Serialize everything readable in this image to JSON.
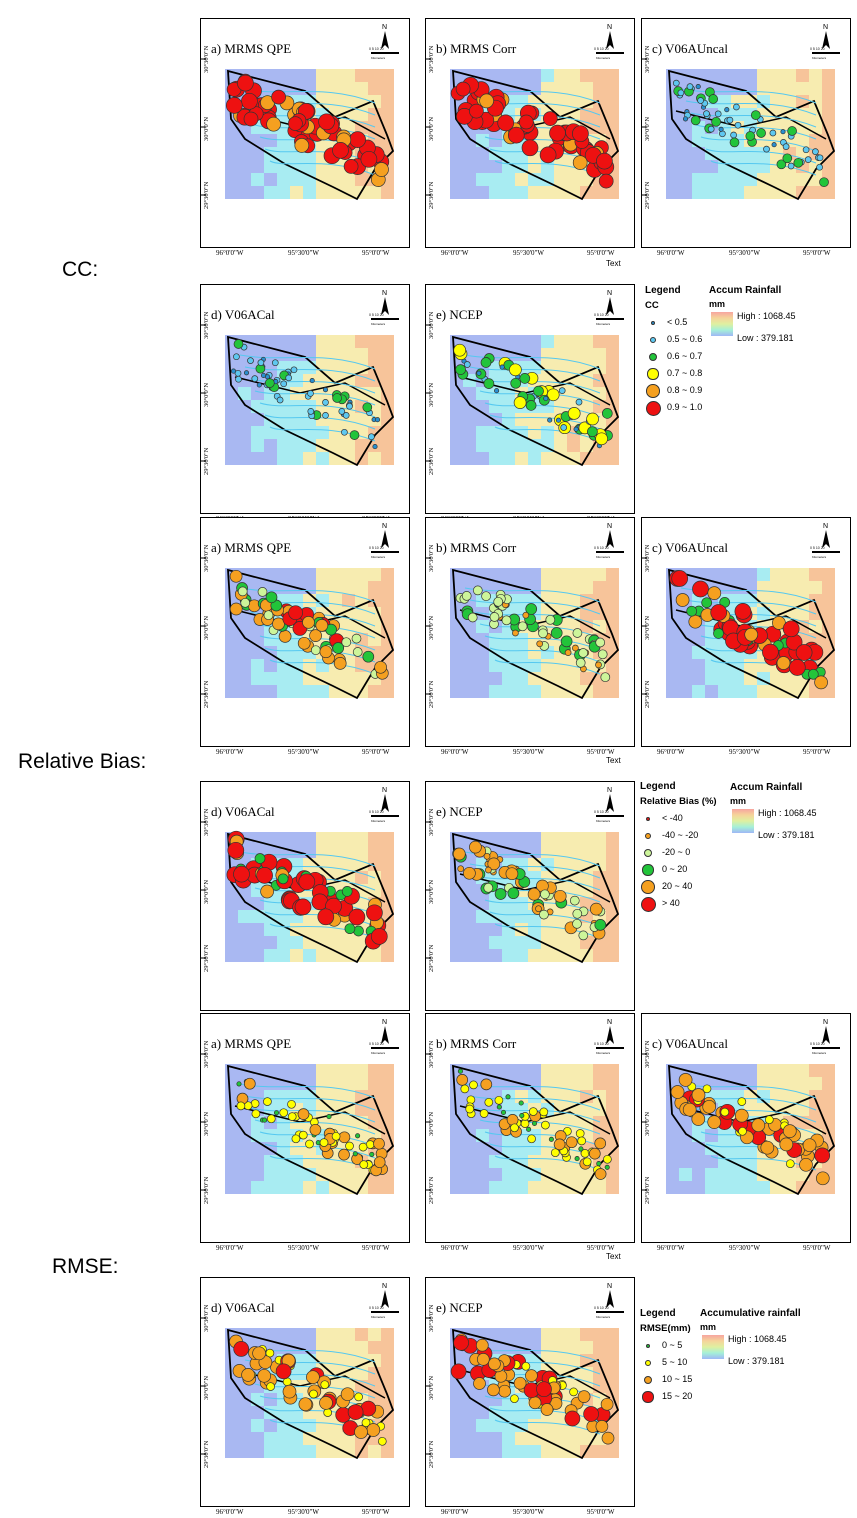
{
  "row_labels": {
    "cc": "CC:",
    "bias": "Relative Bias:",
    "rmse": "RMSE:"
  },
  "text_marks": [
    "Text",
    "Text",
    "Text"
  ],
  "axis": {
    "lat_labels": [
      "30°30'0\"N",
      "30°0'0\"N",
      "29°30'0\"N"
    ],
    "lon_labels": [
      "96°0'0\"W",
      "95°30'0\"W",
      "95°0'0\"W"
    ]
  },
  "north_arrow": {
    "letter": "N",
    "scale_text": "0 5 10 20",
    "scale_unit": "Kilometers"
  },
  "panel_titles": {
    "a": "a) MRMS QPE",
    "b": "b) MRMS Corr",
    "c": "c) V06AUncal",
    "d": "d) V06ACal",
    "e": "e) NCEP"
  },
  "legends": {
    "cc": {
      "title": "Legend",
      "subtitle": "CC",
      "items": [
        "< 0.5",
        "0.5 ~ 0.6",
        "0.6 ~ 0.7",
        "0.7 ~ 0.8",
        "0.8 ~ 0.9",
        "0.9 ~ 1.0"
      ],
      "colors": [
        "#2a8fd0",
        "#5ec8f0",
        "#22c43a",
        "#ffff00",
        "#f5a020",
        "#ee1111"
      ]
    },
    "bias": {
      "title": "Legend",
      "subtitle": "Relative Bias (%)",
      "items": [
        "< -40",
        "-40 ~ -20",
        "-20 ~ 0",
        "0 ~ 20",
        "20 ~ 40",
        "> 40"
      ],
      "colors": [
        "#ee1111",
        "#f5a020",
        "#cdf59a",
        "#22c43a",
        "#f5a020",
        "#ee1111"
      ]
    },
    "rmse": {
      "title": "Legend",
      "subtitle": "RMSE(mm)",
      "items": [
        "0 ~ 5",
        "5 ~ 10",
        "10 ~ 15",
        "15 ~ 20"
      ],
      "colors": [
        "#22c43a",
        "#ffff00",
        "#f5a020",
        "#ee1111"
      ]
    }
  },
  "rainfall": {
    "cc": {
      "title": "Accum Rainfall",
      "unit": "mm",
      "high": "High : 1068.45",
      "low": "Low : 379.181"
    },
    "bias": {
      "title": "Accum Rainfall",
      "unit": "mm",
      "high": "High : 1068.45",
      "low": "Low : 379.181"
    },
    "rmse": {
      "title": "Accumulative rainfall",
      "unit": "mm",
      "high": "High : 1068.45",
      "low": "Low : 379.181"
    }
  },
  "colors": {
    "bg_blue": "#a9b8f2",
    "bg_cyan": "#a8ecf2",
    "bg_yellow": "#f7ecb0",
    "bg_orange": "#f7c49a",
    "river": "#55c8f0",
    "boundary": "#000000"
  }
}
